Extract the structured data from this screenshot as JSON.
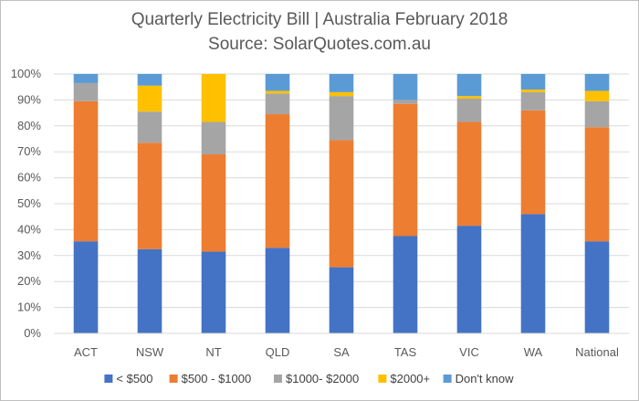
{
  "chart_data": {
    "type": "bar",
    "stacked": true,
    "percent": true,
    "title": "Quarterly Electricity Bill | Australia February 2018",
    "subtitle": "Source: SolarQuotes.com.au",
    "ylim": [
      0,
      100
    ],
    "yticks": [
      "0%",
      "10%",
      "20%",
      "30%",
      "40%",
      "50%",
      "60%",
      "70%",
      "80%",
      "90%",
      "100%"
    ],
    "grid": true,
    "legend_position": "bottom",
    "categories": [
      "ACT",
      "NSW",
      "NT",
      "QLD",
      "SA",
      "TAS",
      "VIC",
      "WA",
      "National"
    ],
    "series": [
      {
        "name": "< $500",
        "color": "#4472C4",
        "values": [
          35.5,
          32.5,
          31.5,
          33,
          25.5,
          37.5,
          41.5,
          46,
          35.5
        ]
      },
      {
        "name": "$500 - $1000",
        "color": "#ED7D31",
        "values": [
          54,
          41,
          37.5,
          51.5,
          49,
          51,
          40,
          40,
          44
        ]
      },
      {
        "name": "$1000- $2000",
        "color": "#A5A5A5",
        "values": [
          7,
          12,
          12.5,
          8,
          17,
          1.5,
          9,
          7,
          10
        ]
      },
      {
        "name": "$2000+",
        "color": "#FFC000",
        "values": [
          0,
          10,
          18.5,
          1,
          1.5,
          0,
          1,
          1,
          4
        ]
      },
      {
        "name": "Don't know",
        "color": "#5B9BD5",
        "values": [
          3.5,
          4.5,
          0,
          6.5,
          7,
          10,
          8.5,
          6,
          6.5
        ]
      }
    ]
  }
}
